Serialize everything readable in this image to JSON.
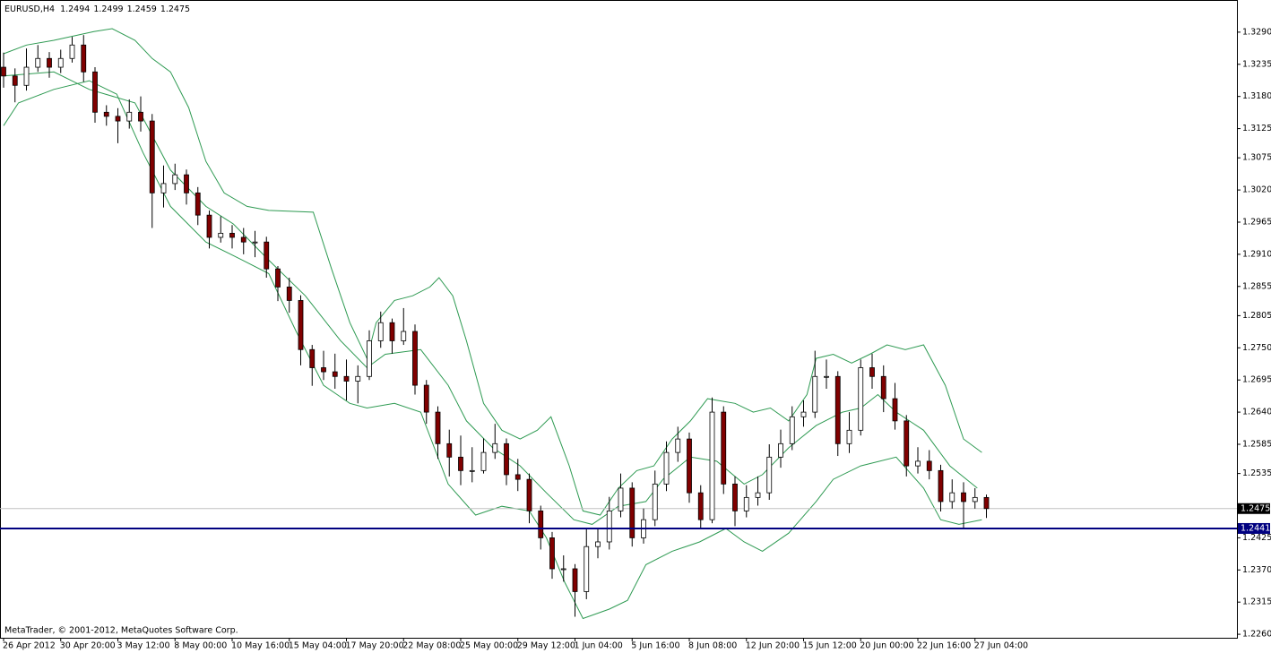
{
  "chart_data": {
    "type": "candlestick",
    "title": "EURUSD,H4",
    "footer": "MetaTrader, © 2001-2012, MetaQuotes Software Corp.",
    "up_color": "#ffffff",
    "down_color": "#800000",
    "band_color": "#2e9a52",
    "current_line_color": "#c0c0c0",
    "ylim": [
      1.2254,
      1.3345
    ],
    "yticks": [
      {
        "value": 1.329,
        "label": "1.3290"
      },
      1.3235,
      {
        "value": 1.318,
        "label": "1.3180"
      },
      1.3125,
      1.3075,
      {
        "value": 1.302,
        "label": "1.3020"
      },
      1.2965,
      {
        "value": 1.291,
        "label": "1.2910"
      },
      1.2855,
      1.2805,
      {
        "value": 1.275,
        "label": "1.2750"
      },
      1.2695,
      {
        "value": 1.264,
        "label": "1.2640"
      },
      1.2585,
      1.2535,
      1.2425,
      {
        "value": 1.237,
        "label": "1.2370"
      },
      1.2315,
      {
        "value": 1.226,
        "label": "1.2260"
      }
    ],
    "hlines": [
      {
        "value": 1.2441,
        "color": "#000080"
      }
    ],
    "categories": [
      "26 Apr 2012",
      null,
      null,
      null,
      null,
      "30 Apr 20:00",
      null,
      null,
      null,
      null,
      "3 May 12:00",
      null,
      null,
      null,
      null,
      "8 May 00:00",
      null,
      null,
      null,
      null,
      "10 May 16:00",
      null,
      null,
      null,
      null,
      "15 May 04:00",
      null,
      null,
      null,
      null,
      "17 May 20:00",
      null,
      null,
      null,
      null,
      "22 May 08:00",
      null,
      null,
      null,
      null,
      "25 May 00:00",
      null,
      null,
      null,
      null,
      "29 May 12:00",
      null,
      null,
      null,
      null,
      "1 Jun 04:00",
      null,
      null,
      null,
      null,
      "5 Jun 16:00",
      null,
      null,
      null,
      null,
      "8 Jun 08:00",
      null,
      null,
      null,
      null,
      "12 Jun 20:00",
      null,
      null,
      null,
      null,
      "15 Jun 12:00",
      null,
      null,
      null,
      null,
      "20 Jun 00:00",
      null,
      null,
      null,
      null,
      "22 Jun 16:00",
      null,
      null,
      null,
      null,
      "27 Jun 04:00",
      null
    ],
    "open": [
      1.323,
      1.3215,
      1.3199,
      1.323,
      1.3245,
      1.323,
      1.3245,
      1.3268,
      1.3222,
      1.3153,
      1.3146,
      1.3138,
      1.3153,
      1.3138,
      1.3015,
      1.3031,
      1.3046,
      1.3015,
      1.2977,
      1.2939,
      1.2946,
      1.2939,
      1.2931,
      1.2931,
      1.2885,
      1.2854,
      1.2831,
      1.2747,
      1.2716,
      1.2709,
      1.2701,
      1.2693,
      1.2701,
      1.2762,
      1.2793,
      1.2762,
      1.2778,
      1.2686,
      1.264,
      1.2586,
      1.2563,
      1.254,
      1.254,
      1.2571,
      1.2586,
      1.2533,
      1.2525,
      1.2471,
      1.2425,
      1.2372,
      1.2372,
      1.2333,
      1.241,
      1.2418,
      1.2471,
      1.251,
      1.2425,
      1.2456,
      1.2517,
      1.2571,
      1.2594,
      1.2502,
      1.2456,
      1.264,
      1.2517,
      1.2471,
      1.2494,
      1.2502,
      1.2563,
      1.2586,
      1.2632,
      1.264,
      1.2701,
      1.2701,
      1.2586,
      1.2609,
      1.2716,
      1.2701,
      1.2663,
      1.2625,
      1.2548,
      1.2556,
      1.254,
      1.2487,
      1.2502,
      1.2487,
      1.2494
    ],
    "high": [
      1.3255,
      1.3228,
      1.3262,
      1.3268,
      1.3256,
      1.326,
      1.3282,
      1.3285,
      1.323,
      1.3165,
      1.316,
      1.3175,
      1.318,
      1.315,
      1.3062,
      1.3065,
      1.3055,
      1.3025,
      1.2985,
      1.2975,
      1.296,
      1.2955,
      1.295,
      1.294,
      1.289,
      1.287,
      1.284,
      1.2755,
      1.2745,
      1.274,
      1.273,
      1.272,
      1.278,
      1.2812,
      1.28,
      1.2818,
      1.279,
      1.2695,
      1.265,
      1.261,
      1.26,
      1.258,
      1.2595,
      1.262,
      1.2595,
      1.256,
      1.2535,
      1.248,
      1.2435,
      1.2395,
      1.238,
      1.244,
      1.244,
      1.2495,
      1.2535,
      1.252,
      1.2475,
      1.254,
      1.259,
      1.2615,
      1.2605,
      1.2515,
      1.2665,
      1.265,
      1.253,
      1.2515,
      1.253,
      1.2585,
      1.261,
      1.265,
      1.266,
      1.2745,
      1.273,
      1.271,
      1.264,
      1.273,
      1.274,
      1.272,
      1.269,
      1.2635,
      1.258,
      1.2575,
      1.255,
      1.2525,
      1.252,
      1.251,
      1.2499
    ],
    "low": [
      1.3195,
      1.317,
      1.319,
      1.3222,
      1.3212,
      1.322,
      1.3238,
      1.3205,
      1.3135,
      1.313,
      1.31,
      1.3125,
      1.312,
      1.2955,
      1.299,
      1.302,
      1.2995,
      1.296,
      1.292,
      1.293,
      1.292,
      1.291,
      1.2905,
      1.287,
      1.283,
      1.281,
      1.272,
      1.2685,
      1.2695,
      1.268,
      1.266,
      1.2655,
      1.2695,
      1.275,
      1.274,
      1.2755,
      1.267,
      1.262,
      1.256,
      1.253,
      1.2515,
      1.252,
      1.2535,
      1.256,
      1.2515,
      1.2505,
      1.245,
      1.2405,
      1.2355,
      1.235,
      1.229,
      1.232,
      1.239,
      1.2405,
      1.246,
      1.241,
      1.2415,
      1.2445,
      1.2505,
      1.2555,
      1.2485,
      1.244,
      1.245,
      1.25,
      1.2445,
      1.246,
      1.248,
      1.249,
      1.2545,
      1.2575,
      1.2615,
      1.263,
      1.268,
      1.2565,
      1.257,
      1.26,
      1.268,
      1.264,
      1.261,
      1.253,
      1.2535,
      1.2525,
      1.247,
      1.2475,
      1.2441,
      1.2475,
      1.2459
    ],
    "close": [
      1.3215,
      1.3199,
      1.323,
      1.3245,
      1.323,
      1.3245,
      1.3268,
      1.3222,
      1.3153,
      1.3146,
      1.3138,
      1.3153,
      1.3138,
      1.3015,
      1.3031,
      1.3046,
      1.3015,
      1.2977,
      1.2939,
      1.2946,
      1.2939,
      1.2931,
      1.2931,
      1.2885,
      1.2854,
      1.2831,
      1.2747,
      1.2716,
      1.2709,
      1.2701,
      1.2693,
      1.2701,
      1.2762,
      1.2793,
      1.2762,
      1.2778,
      1.2686,
      1.264,
      1.2586,
      1.2563,
      1.254,
      1.254,
      1.2571,
      1.2586,
      1.2533,
      1.2525,
      1.2471,
      1.2425,
      1.2372,
      1.2372,
      1.2333,
      1.241,
      1.2418,
      1.2471,
      1.251,
      1.2425,
      1.2456,
      1.2517,
      1.2571,
      1.2594,
      1.2502,
      1.2456,
      1.264,
      1.2517,
      1.2471,
      1.2494,
      1.2502,
      1.2563,
      1.2586,
      1.2632,
      1.264,
      1.2701,
      1.2701,
      1.2586,
      1.2609,
      1.2716,
      1.2701,
      1.2663,
      1.2625,
      1.2548,
      1.2556,
      1.254,
      1.2487,
      1.2502,
      1.2487,
      1.2494,
      1.2475
    ],
    "bands": [
      {
        "x": [
          0,
          2,
          4.4,
          7.9,
          9.5,
          11.5,
          13,
          14.6,
          16.2,
          17.7,
          19.3,
          21.3,
          23.2,
          27.1,
          28.7,
          30.3,
          31.8,
          32.6,
          34.2,
          35.8,
          37.3,
          38.1,
          39.3,
          40.5,
          42,
          43.6,
          45.2,
          46.7,
          47.9,
          49.5,
          50.7,
          52.2,
          53.8,
          55.4,
          56.9,
          58.5,
          60.1,
          61.6,
          64,
          65.6,
          67.1,
          68.7,
          70.3,
          71.1,
          72.6,
          74.2,
          75.8,
          77.3,
          78.9,
          80.5,
          82.4,
          84,
          85.6
        ],
        "values": [
          1.3253,
          1.3268,
          1.3276,
          1.3291,
          1.3296,
          1.3276,
          1.3245,
          1.3222,
          1.3161,
          1.3069,
          1.3015,
          1.2992,
          1.2985,
          1.2982,
          1.2885,
          1.2793,
          1.2732,
          1.2793,
          1.2831,
          1.2839,
          1.2854,
          1.287,
          1.2839,
          1.2762,
          1.2655,
          1.2609,
          1.2594,
          1.2609,
          1.2632,
          1.2548,
          1.2471,
          1.2464,
          1.251,
          1.254,
          1.2548,
          1.2594,
          1.2625,
          1.2663,
          1.2655,
          1.264,
          1.2647,
          1.2625,
          1.267,
          1.2732,
          1.2739,
          1.2724,
          1.2739,
          1.2755,
          1.2747,
          1.2755,
          1.2686,
          1.2594,
          1.2571
        ]
      },
      {
        "x": [
          0,
          4.4,
          7.5,
          11.5,
          14.6,
          17.7,
          20.1,
          23.2,
          26.4,
          29.5,
          31.8,
          33.4,
          36.5,
          38.9,
          40.5,
          42.8,
          45.2,
          47.5,
          49.9,
          51.5,
          53.8,
          56.2,
          57.7,
          60.1,
          62.4,
          64.8,
          66.4,
          68.7,
          71.1,
          73.4,
          75,
          76.5,
          78.1,
          80.5,
          82.8,
          85.2
        ],
        "values": [
          1.3215,
          1.3222,
          1.3192,
          1.3169,
          1.3054,
          1.2992,
          1.2962,
          1.29,
          1.2839,
          1.2762,
          1.2716,
          1.2739,
          1.2747,
          1.2686,
          1.2625,
          1.2579,
          1.2548,
          1.2502,
          1.2456,
          1.2448,
          1.2479,
          1.2487,
          1.2525,
          1.2563,
          1.2556,
          1.2517,
          1.2533,
          1.2579,
          1.2617,
          1.264,
          1.2647,
          1.267,
          1.264,
          1.2609,
          1.2548,
          1.251
        ]
      },
      {
        "x": [
          0,
          1.3,
          4.4,
          7.5,
          9.9,
          12.2,
          14.6,
          17.7,
          20.9,
          23.2,
          25.6,
          28,
          30.3,
          31.8,
          34.2,
          36.5,
          38.9,
          41.3,
          43.6,
          46,
          47.5,
          49.1,
          50.7,
          53,
          54.6,
          56.2,
          58.5,
          60.9,
          63.2,
          64.8,
          66.4,
          68.7,
          71.1,
          72.6,
          75,
          78.1,
          80.5,
          82,
          83.6,
          85.6
        ],
        "values": [
          1.313,
          1.3169,
          1.3192,
          1.3207,
          1.3184,
          1.3084,
          1.2992,
          1.2931,
          1.29,
          1.2877,
          1.2778,
          1.2686,
          1.2655,
          1.2647,
          1.2655,
          1.264,
          1.2517,
          1.2464,
          1.2479,
          1.2471,
          1.2425,
          1.2349,
          1.2287,
          1.2303,
          1.2318,
          1.2379,
          1.2402,
          1.2418,
          1.2441,
          1.2418,
          1.2402,
          1.2433,
          1.2487,
          1.2525,
          1.2548,
          1.2563,
          1.251,
          1.2456,
          1.2448,
          1.2456
        ]
      }
    ]
  }
}
